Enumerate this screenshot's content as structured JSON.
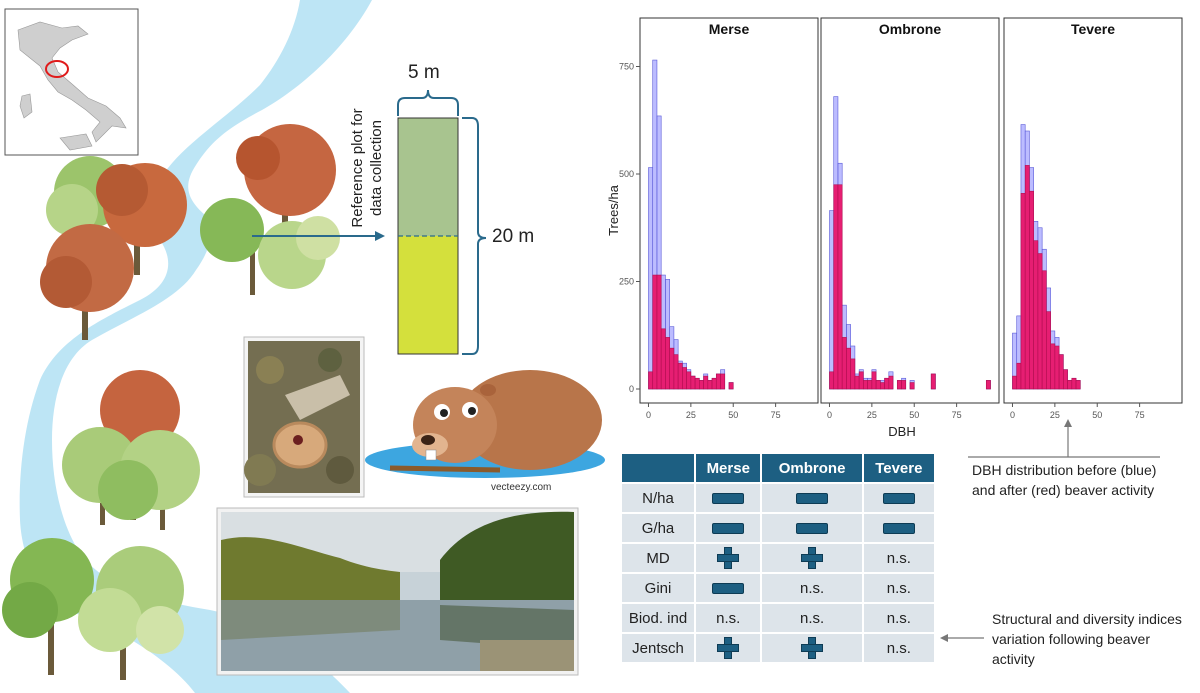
{
  "plot_diagram": {
    "width_label": "5 m",
    "height_label": "20 m",
    "reference_text_line1": "Reference plot for",
    "reference_text_line2": "data collection"
  },
  "photo_credit": "vecteezy.com",
  "chart_data": {
    "type": "bar",
    "panels": [
      "Merse",
      "Ombrone",
      "Tevere"
    ],
    "xlabel": "DBH",
    "ylabel": "Trees/ha",
    "x_ticks": [
      0,
      25,
      50,
      75
    ],
    "y_ticks": [
      0,
      250,
      500,
      750
    ],
    "xlim": [
      -5,
      100
    ],
    "ylim": [
      0,
      800
    ],
    "bin_width": 2.5,
    "series": [
      {
        "name": "before",
        "color": "#8f8fff",
        "merse": [
          [
            0,
            515
          ],
          [
            2.5,
            765
          ],
          [
            5,
            635
          ],
          [
            7.5,
            265
          ],
          [
            10,
            255
          ],
          [
            12.5,
            145
          ],
          [
            15,
            115
          ],
          [
            17.5,
            65
          ],
          [
            20,
            60
          ],
          [
            22.5,
            45
          ],
          [
            25,
            30
          ],
          [
            27.5,
            25
          ],
          [
            30,
            20
          ],
          [
            32.5,
            35
          ],
          [
            35,
            20
          ],
          [
            37.5,
            25
          ],
          [
            40,
            35
          ],
          [
            42.5,
            45
          ],
          [
            47.5,
            15
          ]
        ],
        "ombrone": [
          [
            0,
            415
          ],
          [
            2.5,
            680
          ],
          [
            5,
            525
          ],
          [
            7.5,
            195
          ],
          [
            10,
            150
          ],
          [
            12.5,
            100
          ],
          [
            15,
            35
          ],
          [
            17.5,
            45
          ],
          [
            20,
            25
          ],
          [
            22.5,
            25
          ],
          [
            25,
            45
          ],
          [
            27.5,
            20
          ],
          [
            30,
            20
          ],
          [
            32.5,
            25
          ],
          [
            35,
            40
          ],
          [
            40,
            20
          ],
          [
            42.5,
            25
          ],
          [
            47.5,
            20
          ],
          [
            60,
            35
          ],
          [
            92.5,
            20
          ]
        ],
        "tevere": [
          [
            0,
            130
          ],
          [
            2.5,
            170
          ],
          [
            5,
            615
          ],
          [
            7.5,
            600
          ],
          [
            10,
            515
          ],
          [
            12.5,
            390
          ],
          [
            15,
            375
          ],
          [
            17.5,
            325
          ],
          [
            20,
            235
          ],
          [
            22.5,
            135
          ],
          [
            25,
            120
          ],
          [
            27.5,
            80
          ],
          [
            30,
            45
          ],
          [
            32.5,
            20
          ],
          [
            35,
            25
          ],
          [
            37.5,
            20
          ]
        ]
      },
      {
        "name": "after",
        "color": "#e8156a",
        "merse": [
          [
            0,
            40
          ],
          [
            2.5,
            265
          ],
          [
            5,
            265
          ],
          [
            7.5,
            140
          ],
          [
            10,
            120
          ],
          [
            12.5,
            95
          ],
          [
            15,
            80
          ],
          [
            17.5,
            60
          ],
          [
            20,
            50
          ],
          [
            22.5,
            40
          ],
          [
            25,
            30
          ],
          [
            27.5,
            25
          ],
          [
            30,
            20
          ],
          [
            32.5,
            30
          ],
          [
            35,
            20
          ],
          [
            37.5,
            25
          ],
          [
            40,
            35
          ],
          [
            42.5,
            35
          ],
          [
            47.5,
            15
          ]
        ],
        "ombrone": [
          [
            0,
            40
          ],
          [
            2.5,
            475
          ],
          [
            5,
            475
          ],
          [
            7.5,
            120
          ],
          [
            10,
            95
          ],
          [
            12.5,
            70
          ],
          [
            15,
            30
          ],
          [
            17.5,
            40
          ],
          [
            20,
            20
          ],
          [
            22.5,
            20
          ],
          [
            25,
            40
          ],
          [
            27.5,
            20
          ],
          [
            30,
            15
          ],
          [
            32.5,
            25
          ],
          [
            35,
            30
          ],
          [
            40,
            20
          ],
          [
            42.5,
            20
          ],
          [
            47.5,
            15
          ],
          [
            60,
            35
          ],
          [
            92.5,
            20
          ]
        ],
        "tevere": [
          [
            0,
            30
          ],
          [
            2.5,
            60
          ],
          [
            5,
            455
          ],
          [
            7.5,
            520
          ],
          [
            10,
            460
          ],
          [
            12.5,
            345
          ],
          [
            15,
            315
          ],
          [
            17.5,
            275
          ],
          [
            20,
            180
          ],
          [
            22.5,
            105
          ],
          [
            25,
            100
          ],
          [
            27.5,
            80
          ],
          [
            30,
            45
          ],
          [
            32.5,
            20
          ],
          [
            35,
            25
          ],
          [
            37.5,
            20
          ]
        ]
      }
    ]
  },
  "dbh_caption_line1": "DBH distribution before (blue)",
  "dbh_caption_line2": "and after (red) beaver activity",
  "indices_table": {
    "headers": [
      "",
      "Merse",
      "Ombrone",
      "Tevere"
    ],
    "rows": [
      {
        "label": "N/ha",
        "values": [
          "minus",
          "minus",
          "minus"
        ]
      },
      {
        "label": "G/ha",
        "values": [
          "minus",
          "minus",
          "minus"
        ]
      },
      {
        "label": "MD",
        "values": [
          "plus",
          "plus",
          "n.s."
        ]
      },
      {
        "label": "Gini",
        "values": [
          "minus",
          "n.s.",
          "n.s."
        ]
      },
      {
        "label": "Biod. ind",
        "values": [
          "n.s.",
          "n.s.",
          "n.s."
        ]
      },
      {
        "label": "Jentsch",
        "values": [
          "plus",
          "plus",
          "n.s."
        ]
      }
    ]
  },
  "indices_caption_line1": "Structural and diversity indices",
  "indices_caption_line2": "variation following beaver",
  "indices_caption_line3": "activity",
  "colors": {
    "river": "#bde5f5",
    "table_header": "#1d5f82",
    "table_cell": "#dde4ea",
    "before": "#8f8fff",
    "after": "#e8156a",
    "plot_top": "#a8c48f",
    "plot_bottom": "#d4e03c"
  }
}
